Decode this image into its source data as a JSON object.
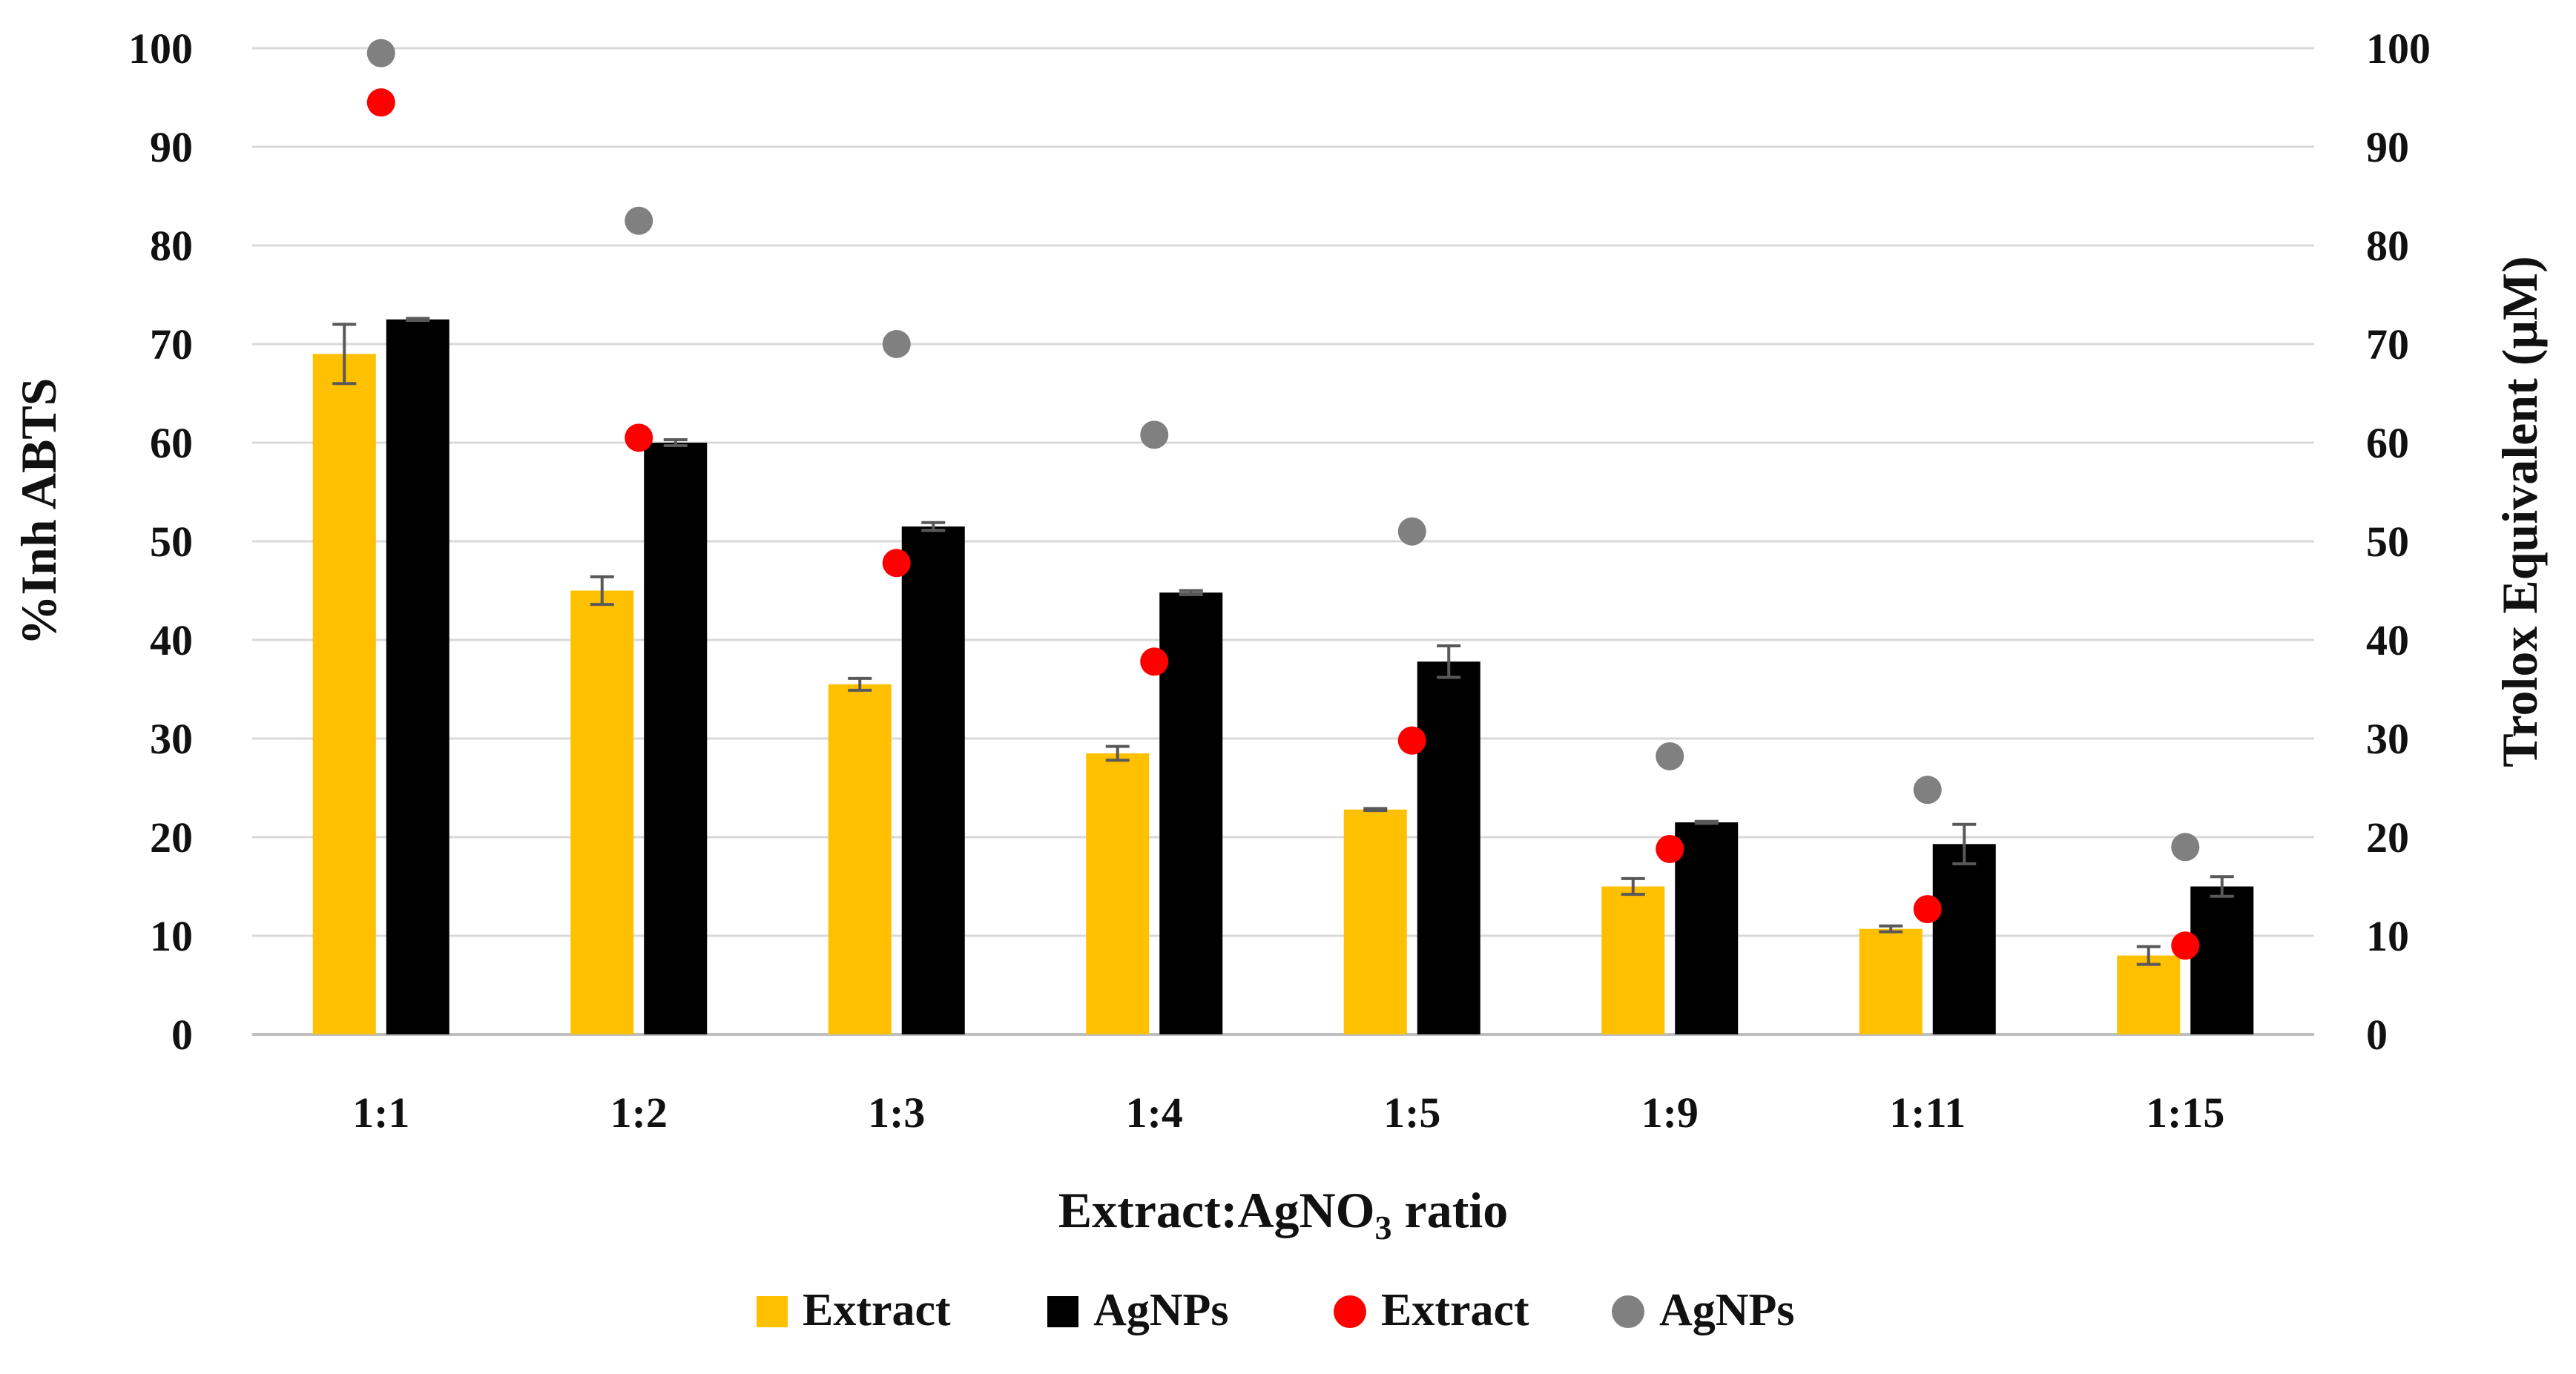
{
  "chart_data": {
    "type": "bar",
    "categories": [
      "1:1",
      "1:2",
      "1:3",
      "1:4",
      "1:5",
      "1:9",
      "1:11",
      "1:15"
    ],
    "xlabel_main": "Extract:AgNO",
    "xlabel_sub": "3",
    "xlabel_tail": " ratio",
    "ylabel": "%Inh ABTS",
    "ylabel_right": "Trolox Equivalent (μM)",
    "ylim": [
      0,
      100
    ],
    "ylim_right": [
      0,
      100
    ],
    "yticks": [
      "0",
      "10",
      "20",
      "30",
      "40",
      "50",
      "60",
      "70",
      "80",
      "90",
      "100"
    ],
    "grid": true,
    "legend_position": "bottom",
    "bar_series": [
      {
        "name": "Extract",
        "color": "#FFC000",
        "values": [
          69,
          45,
          35.5,
          28.5,
          22.8,
          15,
          10.7,
          8
        ],
        "errors": [
          3,
          1.4,
          0.6,
          0.7,
          0.1,
          0.8,
          0.3,
          0.9
        ]
      },
      {
        "name": "AgNPs",
        "color": "#000000",
        "values": [
          72.5,
          60,
          51.5,
          44.8,
          37.8,
          21.5,
          19.3,
          15
        ],
        "errors": [
          0.1,
          0.3,
          0.4,
          0.2,
          1.6,
          0.1,
          2.0,
          1.0
        ]
      }
    ],
    "point_series": [
      {
        "name": "Extract",
        "color": "#FF0000",
        "axis": "right",
        "values": [
          94.5,
          60.5,
          47.8,
          37.8,
          29.8,
          18.8,
          12.7,
          9
        ]
      },
      {
        "name": "AgNPs",
        "color": "#808080",
        "axis": "right",
        "values": [
          99.5,
          82.5,
          70,
          60.8,
          51,
          28.2,
          24.8,
          19
        ]
      }
    ]
  }
}
